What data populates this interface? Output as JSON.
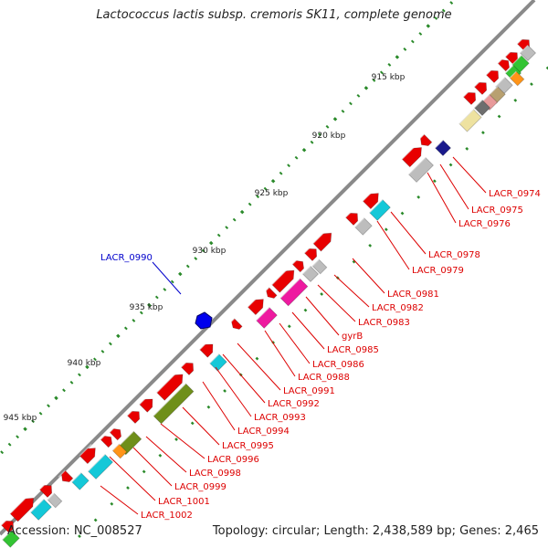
{
  "title": "Lactococcus lactis subsp. cremoris SK11, complete genome",
  "footer": {
    "accession": "Accession: NC_008527",
    "info": "Topology: circular; Length: 2,438,589 bp; Genes: 2,465"
  },
  "ticks": [
    "915 kbp",
    "920 kbp",
    "925 kbp",
    "930 kbp",
    "935 kbp",
    "940 kbp",
    "945 kbp"
  ],
  "selected_gene": "LACR_0990",
  "gene_labels": [
    "LACR_0974",
    "LACR_0975",
    "LACR_0976",
    "LACR_0978",
    "LACR_0979",
    "LACR_0981",
    "LACR_0982",
    "LACR_0983",
    "gyrB",
    "LACR_0985",
    "LACR_0986",
    "LACR_0988",
    "LACR_0991",
    "LACR_0992",
    "LACR_0993",
    "LACR_0994",
    "LACR_0995",
    "LACR_0996",
    "LACR_0998",
    "LACR_0999",
    "LACR_1001",
    "LACR_1002"
  ],
  "colors": {
    "backbone": "#8a8a8a",
    "gene_label": "#dd0000",
    "selected_gene": "#0000cc",
    "tick": "#2a8a2a"
  }
}
